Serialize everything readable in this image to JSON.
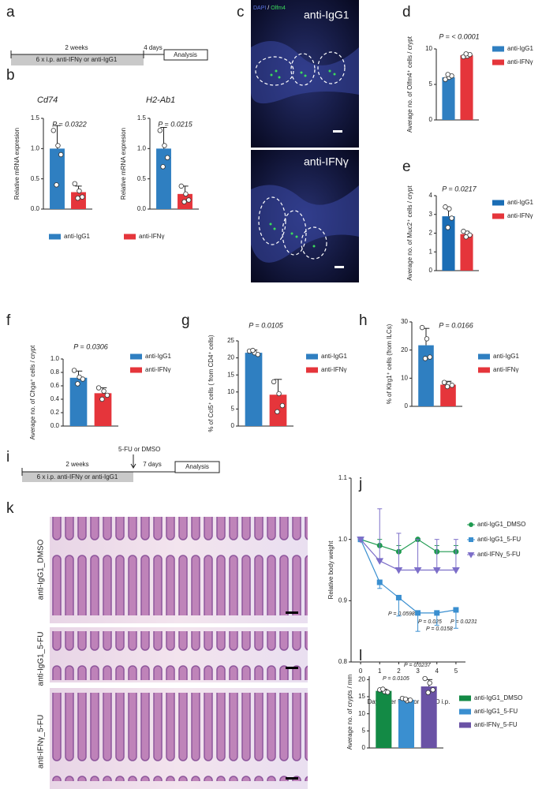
{
  "panel_labels": [
    "a",
    "b",
    "c",
    "d",
    "e",
    "f",
    "g",
    "h",
    "i",
    "j",
    "k",
    "l"
  ],
  "timeline_a": {
    "duration_1": "2 weeks",
    "duration_2": "4 days",
    "treatment": "6 x i.p. anti-IFNγ or anti-IgG1",
    "endpoint": "Analysis"
  },
  "image_c": {
    "stain_1": "DAPI",
    "separator": "/",
    "stain_2": "Olfm4",
    "label_1": "anti-IgG1",
    "label_2": "anti-IFNγ"
  },
  "timeline_i": {
    "event": "5-FU or DMSO",
    "duration_1": "2 weeks",
    "duration_2": "7 days",
    "treatment": "6 x i.p. anti-IFNγ or anti-IgG1",
    "endpoint": "Analysis"
  },
  "image_k": {
    "labels": [
      "anti-IgG1_DMSO",
      "anti-IgG1_5-FU",
      "anti-IFNγ_5-FU"
    ]
  },
  "chart_data": [
    {
      "type": "bar",
      "title": "Cd74",
      "annotation": "P = 0.0322",
      "ylabel": "Relative mRNA expresion",
      "legend": "bottom",
      "ylim": [
        0,
        1.5
      ],
      "yticks": [
        {
          "value": 0,
          "label": "0.0"
        },
        0.5,
        {
          "value": 1,
          "label": "1.0"
        },
        1.5
      ],
      "series": [
        {
          "name": "anti-IgG1",
          "color": "#2f7fc1",
          "values": [
            1.0
          ],
          "error": [
            0.38
          ],
          "points": [
            1.3,
            1.05,
            0.9,
            0.4
          ]
        },
        {
          "name": "anti-IFNγ",
          "color": "#e5353b",
          "values": [
            0.28
          ],
          "error": [
            0.1
          ],
          "points": [
            0.42,
            0.3,
            0.2,
            0.18
          ]
        }
      ]
    },
    {
      "type": "bar",
      "title": "H2-Ab1",
      "annotation": "P = 0.0215",
      "ylabel": "Relative mRNA expresion",
      "ylim": [
        0,
        1.5
      ],
      "yticks": [
        {
          "value": 0,
          "label": "0.0"
        },
        0.5,
        {
          "value": 1,
          "label": "1.0"
        },
        1.5
      ],
      "series": [
        {
          "color": "#2f7fc1",
          "values": [
            1.0
          ],
          "error": [
            0.35
          ],
          "points": [
            1.3,
            1.05,
            0.85,
            0.7
          ]
        },
        {
          "color": "#e5353b",
          "values": [
            0.25
          ],
          "error": [
            0.13
          ],
          "points": [
            0.38,
            0.25,
            0.15,
            0.12
          ]
        }
      ]
    },
    {
      "type": "bar",
      "annotation": "P = < 0.0001",
      "ylabel": "Average no. of Olfm4⁺ cells / crypt",
      "legend": "right",
      "ylim": [
        0,
        10
      ],
      "yticks": [
        0,
        5,
        10
      ],
      "series": [
        {
          "name": "anti-IgG1",
          "color": "#2f7fc1",
          "values": [
            6.0
          ],
          "error": [
            0.3
          ],
          "points": [
            5.7,
            6.0,
            6.2,
            6.4
          ]
        },
        {
          "name": "anti-IFNγ",
          "color": "#e5353b",
          "values": [
            9.1
          ],
          "error": [
            0.2
          ],
          "points": [
            8.9,
            9.0,
            9.2,
            9.3
          ]
        }
      ]
    },
    {
      "type": "bar",
      "annotation": "P = 0.0217",
      "ylabel": "Average no. of Muc2⁺ cells / crypt",
      "legend": "right",
      "ylim": [
        0,
        4
      ],
      "yticks": [
        0,
        1,
        2,
        3,
        4
      ],
      "series": [
        {
          "name": "anti-IgG1",
          "color": "#1a6db5",
          "values": [
            2.9
          ],
          "error": [
            0.45
          ],
          "points": [
            3.4,
            3.3,
            2.8,
            2.3
          ]
        },
        {
          "name": "anti-IFNγ",
          "color": "#e5353b",
          "values": [
            1.95
          ],
          "error": [
            0.15
          ],
          "points": [
            2.1,
            2.0,
            1.9,
            1.8
          ]
        }
      ]
    },
    {
      "type": "bar",
      "annotation": "P = 0.0306",
      "ylabel": "Average no. of Chga⁺ cells / crypt",
      "legend": "right",
      "ylim": [
        0,
        1
      ],
      "yticks": [
        {
          "value": 0,
          "label": "0.0"
        },
        0.2,
        0.4,
        0.6,
        0.8,
        {
          "value": 1,
          "label": "1.0"
        }
      ],
      "series": [
        {
          "name": "anti-IgG1",
          "color": "#2f7fc1",
          "values": [
            0.72
          ],
          "error": [
            0.1
          ],
          "points": [
            0.83,
            0.73,
            0.7,
            0.63
          ]
        },
        {
          "name": "anti-IFNγ",
          "color": "#e5353b",
          "values": [
            0.49
          ],
          "error": [
            0.08
          ],
          "points": [
            0.57,
            0.52,
            0.46,
            0.4
          ]
        }
      ]
    },
    {
      "type": "bar",
      "annotation": "P = 0.0105",
      "ylabel": "% of Ccl5⁺ cells ( from CD4⁺ cells)",
      "legend": "right",
      "ylim": [
        0,
        25
      ],
      "yticks": [
        0,
        5,
        10,
        15,
        20,
        25
      ],
      "series": [
        {
          "name": "anti-IgG1",
          "color": "#2f7fc1",
          "values": [
            21.5
          ],
          "error": [
            0.8
          ],
          "points": [
            22.0,
            21.5,
            21.0,
            22.2
          ]
        },
        {
          "name": "anti-IFNγ",
          "color": "#e5353b",
          "values": [
            9.2
          ],
          "error": [
            4.5
          ],
          "points": [
            13.0,
            9.5,
            6.0,
            4.2
          ]
        }
      ]
    },
    {
      "type": "bar",
      "annotation": "P = 0.0166",
      "ylabel": "% of Klrg1⁺ cells (from ILCs)",
      "legend": "right",
      "ylim": [
        0,
        30
      ],
      "yticks": [
        0,
        10,
        20,
        30
      ],
      "series": [
        {
          "name": "anti-IgG1",
          "color": "#2f7fc1",
          "values": [
            21.7
          ],
          "error": [
            6.0
          ],
          "points": [
            28.0,
            24.0,
            17.5,
            17.0
          ]
        },
        {
          "name": "anti-IFNγ",
          "color": "#e5353b",
          "values": [
            7.7
          ],
          "error": [
            1.2
          ],
          "points": [
            8.5,
            8.0,
            7.5,
            7.0
          ]
        }
      ]
    },
    {
      "type": "line",
      "ylabel": "Relative body weight",
      "xlabel": "Days after 5-FU or DMSO i.p.",
      "legend": "right",
      "annotations": [
        "P = 0.0598",
        "P = 0.025",
        "P = 0.0158",
        "P = 0.0231"
      ],
      "x": [
        0,
        1,
        2,
        3,
        4,
        5
      ],
      "xlim": [
        -0.5,
        5.5
      ],
      "xticks": [
        0,
        1,
        2,
        3,
        4,
        5
      ],
      "ylim": [
        0.8,
        1.1
      ],
      "yticks": [
        0.8,
        0.9,
        {
          "value": 1,
          "label": "1.0"
        },
        1.1
      ],
      "series": [
        {
          "name": "anti-IgG1_DMSO",
          "color": "#1e9a50",
          "marker": "circle",
          "values": [
            1.0,
            0.99,
            0.98,
            1.0,
            0.98,
            0.98
          ],
          "error": [
            0,
            0.01,
            0.01,
            0,
            0.01,
            0.01
          ]
        },
        {
          "name": "anti-IgG1_5-FU",
          "color": "#3a8fd0",
          "marker": "square",
          "values": [
            1.0,
            0.93,
            0.905,
            0.88,
            0.88,
            0.885
          ],
          "error": [
            0,
            0.01,
            0.03,
            0.03,
            0.02,
            0.03
          ]
        },
        {
          "name": "anti-IFNγ_5-FU",
          "color": "#7d6fc9",
          "marker": "triangle",
          "values": [
            1.0,
            0.965,
            0.95,
            0.95,
            0.95,
            0.95
          ],
          "error": [
            0,
            0.085,
            0.06,
            0.05,
            0.05,
            0.05
          ]
        }
      ]
    },
    {
      "type": "bar",
      "ylabel": "Average no. of crypts / mm",
      "legend": "right",
      "annotations": [
        "P = 0.0105",
        "P = 0.0237"
      ],
      "ylim": [
        0,
        21
      ],
      "yticks": [
        0,
        5,
        10,
        15,
        20
      ],
      "series": [
        {
          "name": "anti-IgG1_DMSO",
          "color": "#138a45",
          "values": [
            16.7
          ],
          "error": [
            0.5
          ],
          "points": [
            17.0,
            16.5,
            16.3,
            17.2
          ]
        },
        {
          "name": "anti-IgG1_5-FU",
          "color": "#3a8fd0",
          "values": [
            14.1
          ],
          "error": [
            0.4
          ],
          "points": [
            14.5,
            13.8,
            14.0,
            14.3
          ]
        },
        {
          "name": "anti-IFNγ_5-FU",
          "color": "#6a52a5",
          "values": [
            18.0
          ],
          "error": [
            2.0
          ],
          "points": [
            20.3,
            19.0,
            17.0,
            16.2
          ]
        }
      ]
    }
  ]
}
